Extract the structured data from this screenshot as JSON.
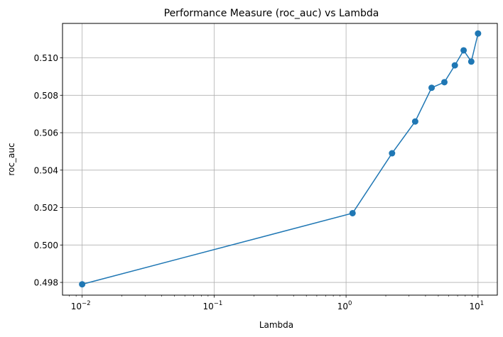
{
  "chart_data": {
    "type": "line",
    "title": "Performance Measure (roc_auc) vs Lambda",
    "xlabel": "Lambda",
    "ylabel": "roc_auc",
    "xscale": "log",
    "xlim": [
      0.0071,
      14.0
    ],
    "ylim": [
      0.49732,
      0.51184
    ],
    "grid": true,
    "x_ticks": [
      {
        "value": 0.01,
        "base": "10",
        "exp": "−2"
      },
      {
        "value": 0.1,
        "base": "10",
        "exp": "−1"
      },
      {
        "value": 1,
        "base": "10",
        "exp": "0"
      },
      {
        "value": 10,
        "base": "10",
        "exp": "1"
      }
    ],
    "y_ticks": [
      {
        "value": 0.498,
        "label": "0.498"
      },
      {
        "value": 0.5,
        "label": "0.500"
      },
      {
        "value": 0.502,
        "label": "0.502"
      },
      {
        "value": 0.504,
        "label": "0.504"
      },
      {
        "value": 0.506,
        "label": "0.506"
      },
      {
        "value": 0.508,
        "label": "0.508"
      },
      {
        "value": 0.51,
        "label": "0.510"
      }
    ],
    "series": [
      {
        "color": "#1f77b4",
        "marker": "circle",
        "x": [
          0.01,
          1.12,
          2.23,
          3.34,
          4.45,
          5.56,
          6.67,
          7.78,
          8.89,
          10.0
        ],
        "y": [
          0.4979,
          0.5017,
          0.5049,
          0.5066,
          0.5084,
          0.5087,
          0.5096,
          0.5104,
          0.5098,
          0.5113
        ]
      }
    ]
  }
}
